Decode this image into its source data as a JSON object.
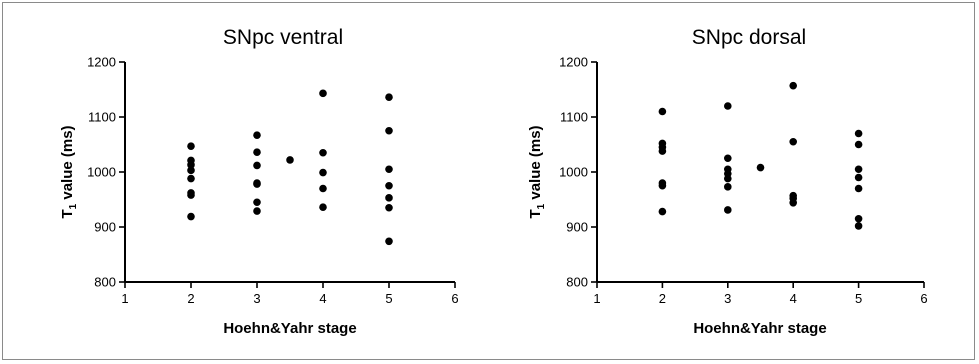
{
  "chart_data": [
    {
      "type": "scatter",
      "title": "SNpc ventral",
      "xlabel": "Hoehn&Yahr stage",
      "ylabel_main": "T",
      "ylabel_sub": "1",
      "ylabel_rest": " value (ms)",
      "xlim": [
        1,
        6
      ],
      "ylim": [
        800,
        1200
      ],
      "xticks": [
        "1",
        "2",
        "3",
        "4",
        "5",
        "6"
      ],
      "yticks": [
        "800",
        "900",
        "1000",
        "1100",
        "1200"
      ],
      "grid": false,
      "marker_color": "#000000",
      "points": [
        {
          "x": 2,
          "y": 1047
        },
        {
          "x": 2,
          "y": 1021
        },
        {
          "x": 2,
          "y": 1013
        },
        {
          "x": 2,
          "y": 1003
        },
        {
          "x": 2,
          "y": 988
        },
        {
          "x": 2,
          "y": 962
        },
        {
          "x": 2,
          "y": 958
        },
        {
          "x": 2,
          "y": 919
        },
        {
          "x": 3,
          "y": 1067
        },
        {
          "x": 3,
          "y": 1036
        },
        {
          "x": 3,
          "y": 1012
        },
        {
          "x": 3,
          "y": 980
        },
        {
          "x": 3,
          "y": 978
        },
        {
          "x": 3,
          "y": 945
        },
        {
          "x": 3,
          "y": 929
        },
        {
          "x": 3.5,
          "y": 1022
        },
        {
          "x": 4,
          "y": 1143
        },
        {
          "x": 4,
          "y": 1035
        },
        {
          "x": 4,
          "y": 999
        },
        {
          "x": 4,
          "y": 970
        },
        {
          "x": 4,
          "y": 936
        },
        {
          "x": 5,
          "y": 1136
        },
        {
          "x": 5,
          "y": 1075
        },
        {
          "x": 5,
          "y": 1005
        },
        {
          "x": 5,
          "y": 975
        },
        {
          "x": 5,
          "y": 953
        },
        {
          "x": 5,
          "y": 935
        },
        {
          "x": 5,
          "y": 874
        }
      ]
    },
    {
      "type": "scatter",
      "title": "SNpc dorsal",
      "xlabel": "Hoehn&Yahr stage",
      "ylabel_main": "T",
      "ylabel_sub": "1",
      "ylabel_rest": " value (ms)",
      "xlim": [
        1,
        6
      ],
      "ylim": [
        800,
        1200
      ],
      "xticks": [
        "1",
        "2",
        "3",
        "4",
        "5",
        "6"
      ],
      "yticks": [
        "800",
        "900",
        "1000",
        "1100",
        "1200"
      ],
      "grid": false,
      "marker_color": "#000000",
      "points": [
        {
          "x": 2,
          "y": 1110
        },
        {
          "x": 2,
          "y": 1052
        },
        {
          "x": 2,
          "y": 1045
        },
        {
          "x": 2,
          "y": 1038
        },
        {
          "x": 2,
          "y": 980
        },
        {
          "x": 2,
          "y": 975
        },
        {
          "x": 2,
          "y": 928
        },
        {
          "x": 3,
          "y": 1120
        },
        {
          "x": 3,
          "y": 1025
        },
        {
          "x": 3,
          "y": 1005
        },
        {
          "x": 3,
          "y": 997
        },
        {
          "x": 3,
          "y": 988
        },
        {
          "x": 3,
          "y": 973
        },
        {
          "x": 3,
          "y": 931
        },
        {
          "x": 3.5,
          "y": 1008
        },
        {
          "x": 4,
          "y": 1157
        },
        {
          "x": 4,
          "y": 1055
        },
        {
          "x": 4,
          "y": 957
        },
        {
          "x": 4,
          "y": 952
        },
        {
          "x": 4,
          "y": 944
        },
        {
          "x": 5,
          "y": 1070
        },
        {
          "x": 5,
          "y": 1050
        },
        {
          "x": 5,
          "y": 1005
        },
        {
          "x": 5,
          "y": 990
        },
        {
          "x": 5,
          "y": 970
        },
        {
          "x": 5,
          "y": 915
        },
        {
          "x": 5,
          "y": 902
        }
      ]
    }
  ]
}
